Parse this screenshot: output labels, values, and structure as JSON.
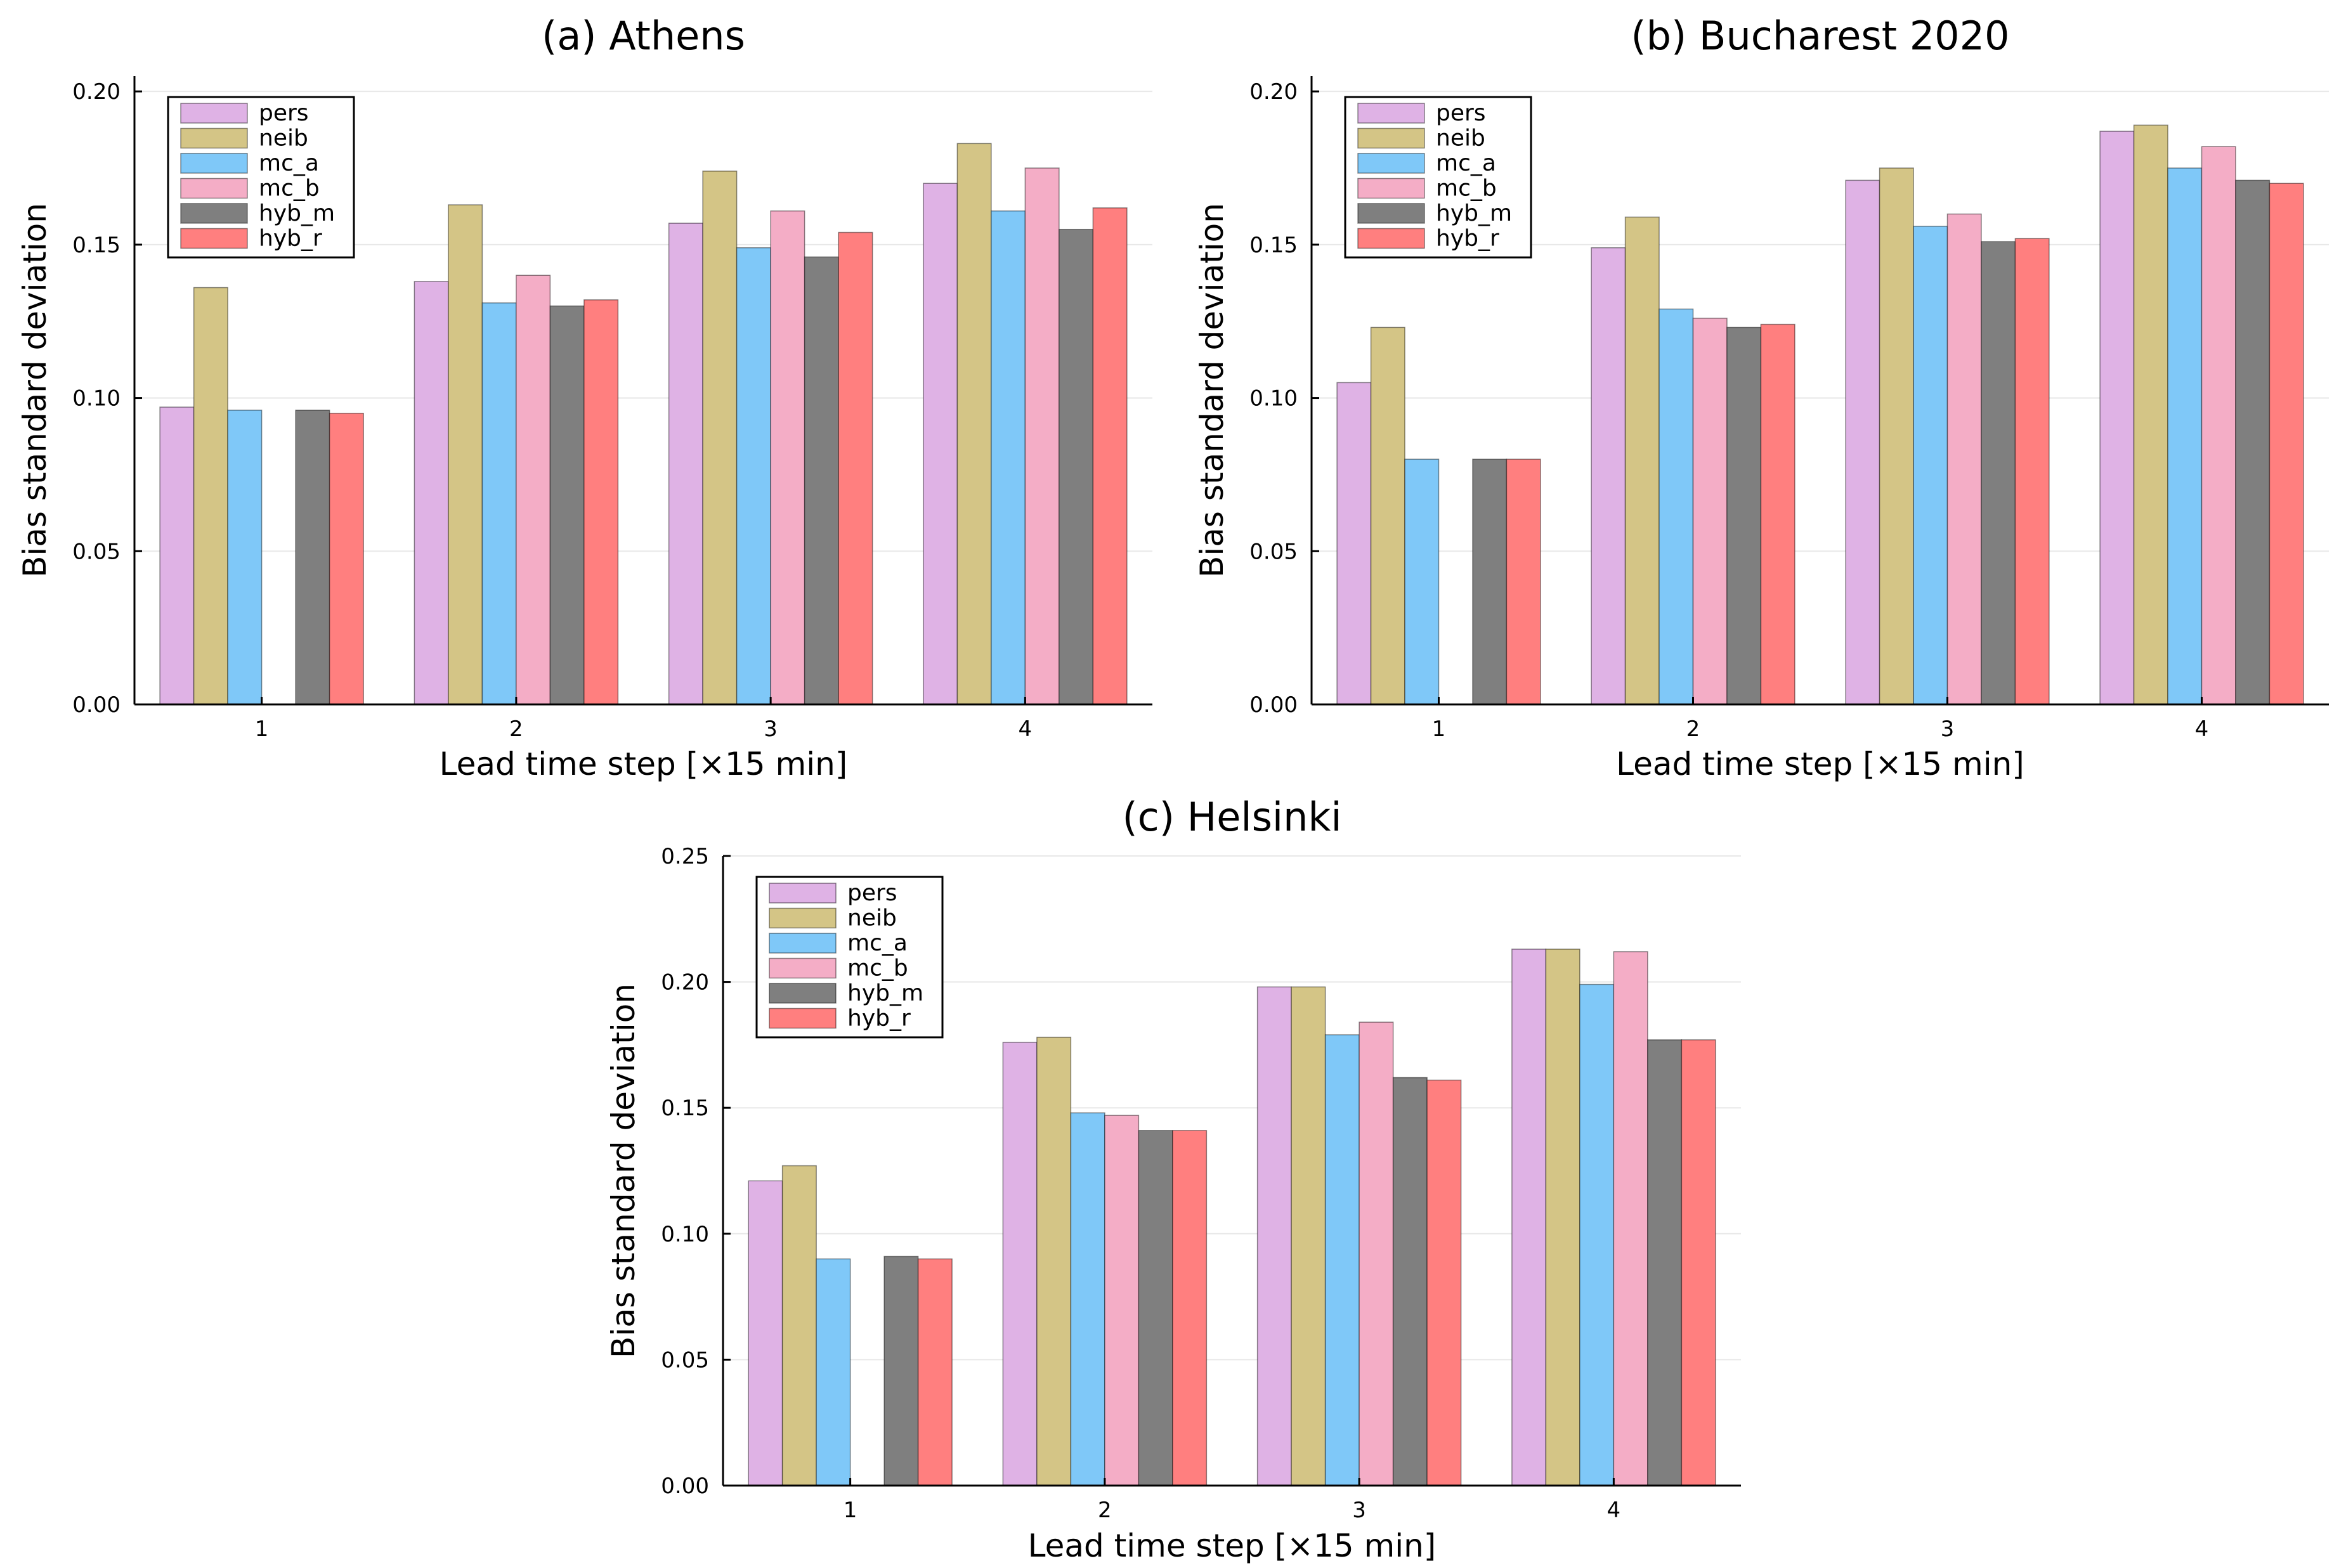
{
  "chart_data": [
    {
      "type": "bar",
      "title": "(a) Athens",
      "xlabel": "Lead time step [×15 min]",
      "ylabel": "Bias standard deviation",
      "categories": [
        "1",
        "2",
        "3",
        "4"
      ],
      "ylim": [
        0,
        0.205
      ],
      "yticks": [
        "0.00",
        "0.05",
        "0.10",
        "0.15",
        "0.20"
      ],
      "ytick_values": [
        0,
        0.05,
        0.1,
        0.15,
        0.2
      ],
      "legend_position": "top-left",
      "series": [
        {
          "name": "pers",
          "color": "#dfb2e5",
          "values": [
            0.097,
            0.138,
            0.157,
            0.17
          ]
        },
        {
          "name": "neib",
          "color": "#d4c586",
          "values": [
            0.136,
            0.163,
            0.174,
            0.183
          ]
        },
        {
          "name": "mc_a",
          "color": "#7fc8f8",
          "values": [
            0.096,
            0.131,
            0.149,
            0.161
          ]
        },
        {
          "name": "mc_b",
          "color": "#f4adc6",
          "values": [
            0.0,
            0.14,
            0.161,
            0.175
          ]
        },
        {
          "name": "hyb_m",
          "color": "#7f7f7f",
          "values": [
            0.096,
            0.13,
            0.146,
            0.155
          ]
        },
        {
          "name": "hyb_r",
          "color": "#ff7f7f",
          "values": [
            0.095,
            0.132,
            0.154,
            0.162
          ]
        }
      ]
    },
    {
      "type": "bar",
      "title": "(b) Bucharest 2020",
      "xlabel": "Lead time step [×15 min]",
      "ylabel": "Bias standard deviation",
      "categories": [
        "1",
        "2",
        "3",
        "4"
      ],
      "ylim": [
        0,
        0.205
      ],
      "yticks": [
        "0.00",
        "0.05",
        "0.10",
        "0.15",
        "0.20"
      ],
      "ytick_values": [
        0,
        0.05,
        0.1,
        0.15,
        0.2
      ],
      "legend_position": "top-left",
      "series": [
        {
          "name": "pers",
          "color": "#dfb2e5",
          "values": [
            0.105,
            0.149,
            0.171,
            0.187
          ]
        },
        {
          "name": "neib",
          "color": "#d4c586",
          "values": [
            0.123,
            0.159,
            0.175,
            0.189
          ]
        },
        {
          "name": "mc_a",
          "color": "#7fc8f8",
          "values": [
            0.08,
            0.129,
            0.156,
            0.175
          ]
        },
        {
          "name": "mc_b",
          "color": "#f4adc6",
          "values": [
            0.0,
            0.126,
            0.16,
            0.182
          ]
        },
        {
          "name": "hyb_m",
          "color": "#7f7f7f",
          "values": [
            0.08,
            0.123,
            0.151,
            0.171
          ]
        },
        {
          "name": "hyb_r",
          "color": "#ff7f7f",
          "values": [
            0.08,
            0.124,
            0.152,
            0.17
          ]
        }
      ]
    },
    {
      "type": "bar",
      "title": "(c) Helsinki",
      "xlabel": "Lead time step [×15 min]",
      "ylabel": "Bias standard deviation",
      "categories": [
        "1",
        "2",
        "3",
        "4"
      ],
      "ylim": [
        0,
        0.25
      ],
      "yticks": [
        "0.00",
        "0.05",
        "0.10",
        "0.15",
        "0.20",
        "0.25"
      ],
      "ytick_values": [
        0,
        0.05,
        0.1,
        0.15,
        0.2,
        0.25
      ],
      "legend_position": "top-left",
      "series": [
        {
          "name": "pers",
          "color": "#dfb2e5",
          "values": [
            0.121,
            0.176,
            0.198,
            0.213
          ]
        },
        {
          "name": "neib",
          "color": "#d4c586",
          "values": [
            0.127,
            0.178,
            0.198,
            0.213
          ]
        },
        {
          "name": "mc_a",
          "color": "#7fc8f8",
          "values": [
            0.09,
            0.148,
            0.179,
            0.199
          ]
        },
        {
          "name": "mc_b",
          "color": "#f4adc6",
          "values": [
            0.0,
            0.147,
            0.184,
            0.212
          ]
        },
        {
          "name": "hyb_m",
          "color": "#7f7f7f",
          "values": [
            0.091,
            0.141,
            0.162,
            0.177
          ]
        },
        {
          "name": "hyb_r",
          "color": "#ff7f7f",
          "values": [
            0.09,
            0.141,
            0.161,
            0.177
          ]
        }
      ]
    }
  ]
}
